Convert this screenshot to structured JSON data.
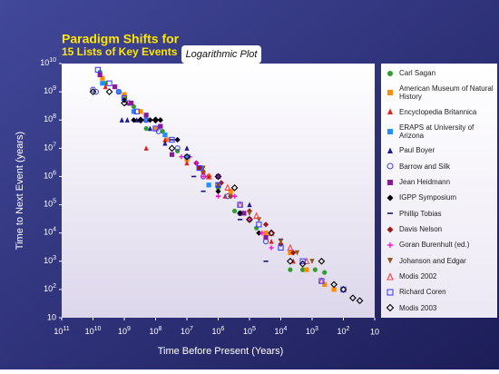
{
  "chart_data": {
    "type": "scatter",
    "title": "Paradigm Shifts for",
    "subtitle": "15 Lists of Key Events",
    "annotation": "Logarithmic Plot",
    "x_label": "Time Before Present (Years)",
    "y_label": "Time to Next Event (years)",
    "xscale": "log",
    "yscale": "log",
    "xlim": [
      100000000000,
      10
    ],
    "ylim": [
      10,
      10000000000
    ],
    "xticks": [
      {
        "value": 100000000000,
        "label": "10",
        "sup": "11"
      },
      {
        "value": 10000000000,
        "label": "10",
        "sup": "10"
      },
      {
        "value": 1000000000,
        "label": "10",
        "sup": "9"
      },
      {
        "value": 100000000,
        "label": "10",
        "sup": "8"
      },
      {
        "value": 10000000,
        "label": "10",
        "sup": "7"
      },
      {
        "value": 1000000,
        "label": "10",
        "sup": "6"
      },
      {
        "value": 100000,
        "label": "10",
        "sup": "5"
      },
      {
        "value": 10000,
        "label": "10",
        "sup": "4"
      },
      {
        "value": 1000,
        "label": "10",
        "sup": "3"
      },
      {
        "value": 100,
        "label": "10",
        "sup": "2"
      },
      10
    ],
    "yticks": [
      10,
      {
        "value": 100,
        "label": "10",
        "sup": "2"
      },
      {
        "value": 1000,
        "label": "10",
        "sup": "3"
      },
      {
        "value": 10000,
        "label": "10",
        "sup": "4"
      },
      {
        "value": 100000,
        "label": "10",
        "sup": "5"
      },
      {
        "value": 1000000,
        "label": "10",
        "sup": "6"
      },
      {
        "value": 10000000,
        "label": "10",
        "sup": "7"
      },
      {
        "value": 100000000,
        "label": "10",
        "sup": "8"
      },
      {
        "value": 1000000000,
        "label": "10",
        "sup": "9"
      },
      {
        "value": 10000000000,
        "label": "10",
        "sup": "10"
      }
    ],
    "series": [
      {
        "name": "Carl Sagan",
        "color": "#2ca02c",
        "marker": "circle",
        "x": [
          6000000000.0,
          4000000000.0,
          1000000000.0,
          500000000.0,
          200000000.0,
          60000000.0,
          20000000.0,
          3000000.0,
          1000000.0,
          300000.0,
          60000.0,
          5000.0,
          2000.0,
          800.0,
          400.0
        ],
        "values": [
          5000000000.0,
          2000000000.0,
          600000000.0,
          300000000.0,
          50000000.0,
          40000000.0,
          8000000.0,
          1500000.0,
          400000.0,
          60000.0,
          15000.0,
          500.0,
          500.0,
          500.0,
          400.0
        ]
      },
      {
        "name": "American Museum of Natural History",
        "color": "#ff8c00",
        "marker": "square",
        "x": [
          5000000000.0,
          1000000000.0,
          300000000.0,
          100000000.0,
          40000000.0,
          10000000.0,
          2000000.0,
          400000.0,
          100000.0,
          30000.0,
          5000.0,
          1500.0,
          400.0,
          200.0
        ],
        "values": [
          3000000000.0,
          800000000.0,
          200000000.0,
          50000000.0,
          20000000.0,
          4000000.0,
          1000000.0,
          300000.0,
          30000.0,
          10000.0,
          2000.0,
          500.0,
          150.0,
          100.0
        ]
      },
      {
        "name": "Encyclopedia Britannica",
        "color": "#e8201a",
        "marker": "triangle",
        "x": [
          4000000000.0,
          800000000.0,
          200000000.0,
          50000000.0,
          10000000.0,
          3000000.0,
          600000.0,
          150000.0,
          20000.0,
          4000.0
        ],
        "values": [
          1500000000.0,
          400000000.0,
          10000000.0,
          20000000.0,
          3000000.0,
          1500000.0,
          200000.0,
          50000.0,
          5000.0,
          1000.0
        ]
      },
      {
        "name": "ERAPS at University of Arizona",
        "color": "#1e90ff",
        "marker": "square",
        "x": [
          5000000000.0,
          1500000000.0,
          500000000.0,
          200000000.0,
          50000000.0,
          10000000.0,
          2000000.0
        ],
        "values": [
          2000000000.0,
          1000000000.0,
          200000000.0,
          100000000.0,
          30000000.0,
          5000000.0,
          500000.0
        ]
      },
      {
        "name": "Paul Boyer",
        "color": "#1a1aa0",
        "marker": "triangle",
        "x": [
          1200000000.0,
          800000000.0,
          400000000.0,
          150000000.0,
          50000000.0,
          10000000.0,
          1000000.0,
          100000.0
        ],
        "values": [
          100000000.0,
          100000000.0,
          100000000.0,
          50000000.0,
          15000000.0,
          10000000.0,
          500000.0,
          100000.0
        ]
      },
      {
        "name": "Barrow and Silk",
        "color": "#4a4adc",
        "marker": "open-circle",
        "x": [
          10000000000.0,
          8000000000.0,
          1500000000.0,
          700000000.0,
          200000000.0,
          80000000.0,
          20000000.0,
          3000000.0,
          500000.0,
          200000.0,
          30000.0
        ],
        "values": [
          1200000000.0,
          1000000000.0,
          1000000000.0,
          400000000.0,
          100000000.0,
          40000000.0,
          10000000.0,
          1000000.0,
          200000.0,
          50000.0,
          5000.0
        ]
      },
      {
        "name": "Jean Heidmann",
        "color": "#8b1a9b",
        "marker": "square",
        "x": [
          6000000000.0,
          2000000000.0,
          600000000.0,
          200000000.0,
          70000000.0,
          30000000.0,
          4000000.0,
          1000000.0,
          150000.0,
          30000.0
        ],
        "values": [
          4000000000.0,
          1500000000.0,
          400000000.0,
          150000000.0,
          60000000.0,
          6000000.0,
          2000000.0,
          1000000.0,
          50000.0,
          7000.0
        ]
      },
      {
        "name": "IGPP Symposium",
        "color": "#000000",
        "marker": "diamond",
        "x": [
          1000000000.0,
          500000000.0,
          300000000.0,
          150000000.0,
          100000000.0,
          70000000.0,
          20000000.0,
          5000000.0,
          1000000.0,
          200000.0,
          50000.0
        ],
        "values": [
          500000000.0,
          100000000.0,
          100000000.0,
          100000000.0,
          100000000.0,
          100000000.0,
          20000000.0,
          3000000.0,
          300000.0,
          50000.0,
          10000.0
        ]
      },
      {
        "name": "Phillip Tobias",
        "color": "#151580",
        "marker": "dash",
        "x": [
          30000000.0,
          6000000.0,
          3000000.0,
          1000000.0,
          300000.0,
          200000.0,
          30000.0,
          10000.0
        ],
        "values": [
          20000000.0,
          1000000.0,
          300000.0,
          200000.0,
          200000.0,
          30000.0,
          1000.0,
          6000.0
        ]
      },
      {
        "name": "Davis Nelson",
        "color": "#a01818",
        "marker": "diamond",
        "x": [
          4000000.0,
          2000000.0,
          800000.0,
          400000.0,
          100000.0,
          30000.0,
          10000.0,
          4000.0
        ],
        "values": [
          2000000.0,
          1000000.0,
          600000.0,
          200000.0,
          60000.0,
          20000.0,
          4000.0,
          2000.0
        ]
      },
      {
        "name": "Goran Burenhult (ed.)",
        "color": "#ff14d2",
        "marker": "plus",
        "x": [
          15000000.0,
          8000000.0,
          5000000.0,
          3000000.0,
          1000000.0,
          300000.0,
          100000.0,
          40000.0,
          20000.0
        ],
        "values": [
          5000000.0,
          5000000.0,
          3000000.0,
          1000000.0,
          200000.0,
          200000.0,
          30000.0,
          10000.0,
          3000.0
        ]
      },
      {
        "name": "Johanson and Edgar",
        "color": "#8b5a1a",
        "marker": "inv-triangle",
        "x": [
          3000000.0,
          1000000.0,
          400000.0,
          100000.0,
          50000.0,
          10000.0,
          3000.0,
          1000.0
        ],
        "values": [
          2000000.0,
          500000.0,
          200000.0,
          50000.0,
          30000.0,
          5000.0,
          2000.0,
          1000.0
        ]
      },
      {
        "name": "Modis 2002",
        "color": "#ff4040",
        "marker": "open-triangle",
        "x": [
          2000000.0,
          500000.0,
          200000.0,
          60000.0,
          20000.0,
          5000.0,
          1500.0,
          500.0
        ],
        "values": [
          1000000.0,
          400000.0,
          100000.0,
          40000.0,
          10000.0,
          3000.0,
          1000.0,
          200.0
        ]
      },
      {
        "name": "Richard Coren",
        "color": "#4040ff",
        "marker": "open-square",
        "x": [
          7000000000.0,
          3000000000.0,
          1000000000.0,
          400000000.0,
          100000000.0,
          30000000.0,
          4000000.0,
          1000000.0,
          200000.0,
          50000.0,
          10000.0,
          2000.0,
          500.0,
          100.0
        ],
        "values": [
          6000000000.0,
          2000000000.0,
          600000000.0,
          200000000.0,
          50000000.0,
          20000000.0,
          2000000.0,
          500000.0,
          100000.0,
          20000.0,
          3000.0,
          1000.0,
          200.0,
          100.0
        ]
      },
      {
        "name": "Modis 2003",
        "color": "#000000",
        "marker": "open-diamond",
        "x": [
          10000000000.0,
          3000000000.0,
          1000000000.0,
          300000000.0,
          100000000.0,
          30000000.0,
          10000000.0,
          1000000.0,
          300000.0,
          100000.0,
          20000.0,
          5000.0,
          2000.0,
          500.0,
          200.0,
          100.0,
          50.0,
          30.0
        ],
        "values": [
          1000000000.0,
          1000000000.0,
          400000000.0,
          100000000.0,
          100000000.0,
          10000000.0,
          5000000.0,
          1000000.0,
          400000.0,
          30000.0,
          10000.0,
          1000.0,
          800.0,
          1000.0,
          150.0,
          100.0,
          50.0,
          40.0
        ]
      }
    ]
  }
}
